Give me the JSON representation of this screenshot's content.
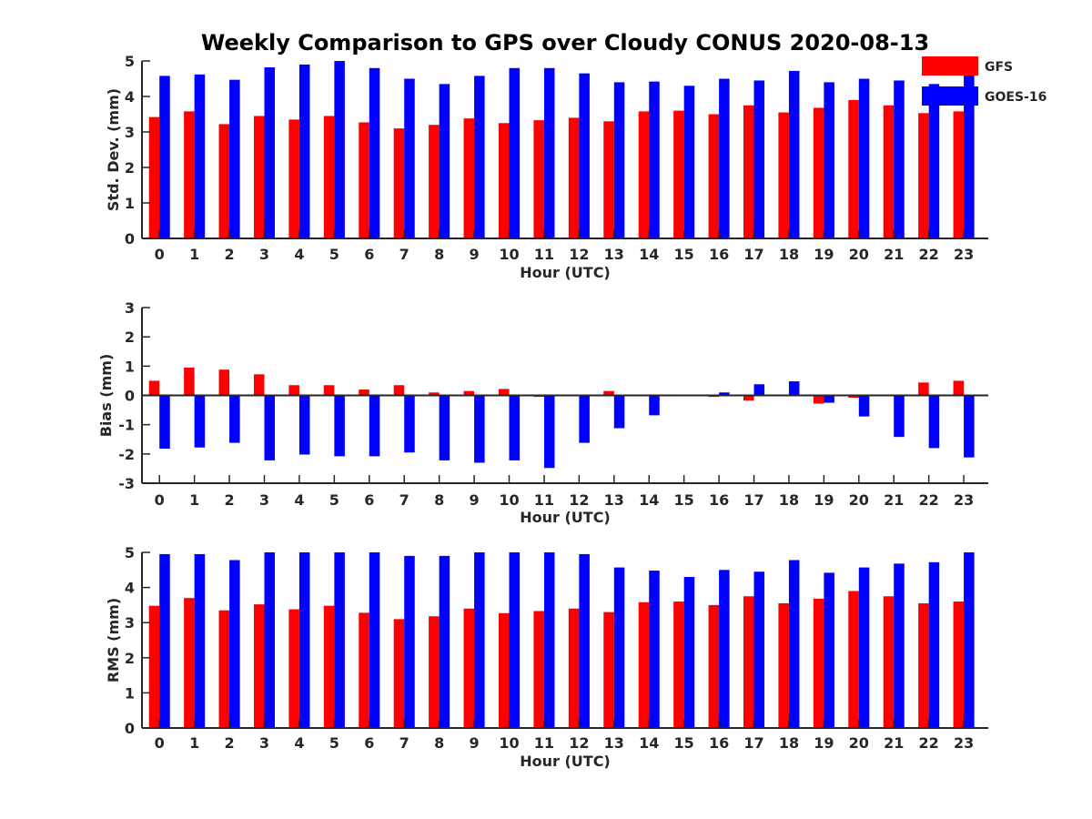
{
  "title": "Weekly Comparison to GPS over Cloudy CONUS 2020-08-13",
  "colors": {
    "GFS": "#ff0000",
    "GOES-16": "#0000ff",
    "axis": "#262626"
  },
  "legend": {
    "placement": "top-right",
    "entries": [
      {
        "label": "GFS",
        "color": "#ff0000"
      },
      {
        "label": "GOES-16",
        "color": "#0000ff"
      }
    ]
  },
  "chart_data": [
    {
      "type": "bar",
      "xlabel": "Hour (UTC)",
      "ylabel": "Std. Dev. (mm)",
      "ylim": [
        0,
        5
      ],
      "yticks": [
        0,
        1,
        2,
        3,
        4,
        5
      ],
      "categories": [
        "0",
        "1",
        "2",
        "3",
        "4",
        "5",
        "6",
        "7",
        "8",
        "9",
        "10",
        "11",
        "12",
        "13",
        "14",
        "15",
        "16",
        "17",
        "18",
        "19",
        "20",
        "21",
        "22",
        "23"
      ],
      "series": [
        {
          "name": "GFS",
          "color": "#ff0000",
          "values": [
            3.42,
            3.58,
            3.22,
            3.45,
            3.35,
            3.45,
            3.27,
            3.1,
            3.2,
            3.38,
            3.25,
            3.33,
            3.4,
            3.3,
            3.58,
            3.6,
            3.5,
            3.75,
            3.55,
            3.68,
            3.9,
            3.75,
            3.53,
            3.58
          ]
        },
        {
          "name": "GOES-16",
          "color": "#0000ff",
          "values": [
            4.58,
            4.62,
            4.47,
            4.82,
            4.9,
            5.0,
            4.8,
            4.5,
            4.35,
            4.58,
            4.8,
            4.8,
            4.65,
            4.4,
            4.42,
            4.3,
            4.5,
            4.45,
            4.72,
            4.4,
            4.5,
            4.45,
            4.35,
            4.65
          ]
        }
      ]
    },
    {
      "type": "bar",
      "xlabel": "Hour (UTC)",
      "ylabel": "Bias (mm)",
      "ylim": [
        -3,
        3
      ],
      "yticks": [
        -3,
        -2,
        -1,
        0,
        1,
        2,
        3
      ],
      "categories": [
        "0",
        "1",
        "2",
        "3",
        "4",
        "5",
        "6",
        "7",
        "8",
        "9",
        "10",
        "11",
        "12",
        "13",
        "14",
        "15",
        "16",
        "17",
        "18",
        "19",
        "20",
        "21",
        "22",
        "23"
      ],
      "series": [
        {
          "name": "GFS",
          "color": "#ff0000",
          "values": [
            0.5,
            0.95,
            0.88,
            0.72,
            0.35,
            0.35,
            0.2,
            0.35,
            0.1,
            0.15,
            0.22,
            -0.05,
            0.02,
            0.15,
            -0.02,
            0.0,
            -0.05,
            -0.18,
            0.0,
            -0.28,
            -0.08,
            0.0,
            0.44,
            0.5
          ]
        },
        {
          "name": "GOES-16",
          "color": "#0000ff",
          "values": [
            -1.82,
            -1.78,
            -1.62,
            -2.22,
            -2.02,
            -2.08,
            -2.08,
            -1.95,
            -2.22,
            -2.3,
            -2.22,
            -2.48,
            -1.62,
            -1.12,
            -0.68,
            0.0,
            0.1,
            0.38,
            0.48,
            -0.25,
            -0.72,
            -1.42,
            -1.8,
            -2.12
          ]
        }
      ]
    },
    {
      "type": "bar",
      "xlabel": "Hour (UTC)",
      "ylabel": "RMS (mm)",
      "ylim": [
        0,
        5
      ],
      "yticks": [
        0,
        1,
        2,
        3,
        4,
        5
      ],
      "categories": [
        "0",
        "1",
        "2",
        "3",
        "4",
        "5",
        "6",
        "7",
        "8",
        "9",
        "10",
        "11",
        "12",
        "13",
        "14",
        "15",
        "16",
        "17",
        "18",
        "19",
        "20",
        "21",
        "22",
        "23"
      ],
      "series": [
        {
          "name": "GFS",
          "color": "#ff0000",
          "values": [
            3.48,
            3.7,
            3.35,
            3.52,
            3.38,
            3.48,
            3.28,
            3.1,
            3.18,
            3.4,
            3.27,
            3.33,
            3.4,
            3.3,
            3.58,
            3.6,
            3.5,
            3.75,
            3.55,
            3.68,
            3.9,
            3.75,
            3.55,
            3.6
          ]
        },
        {
          "name": "GOES-16",
          "color": "#0000ff",
          "values": [
            4.95,
            4.95,
            4.78,
            5.0,
            5.0,
            5.0,
            5.0,
            4.9,
            4.9,
            5.0,
            5.0,
            5.0,
            4.95,
            4.57,
            4.48,
            4.3,
            4.5,
            4.45,
            4.78,
            4.42,
            4.57,
            4.68,
            4.72,
            5.0
          ]
        }
      ]
    }
  ]
}
